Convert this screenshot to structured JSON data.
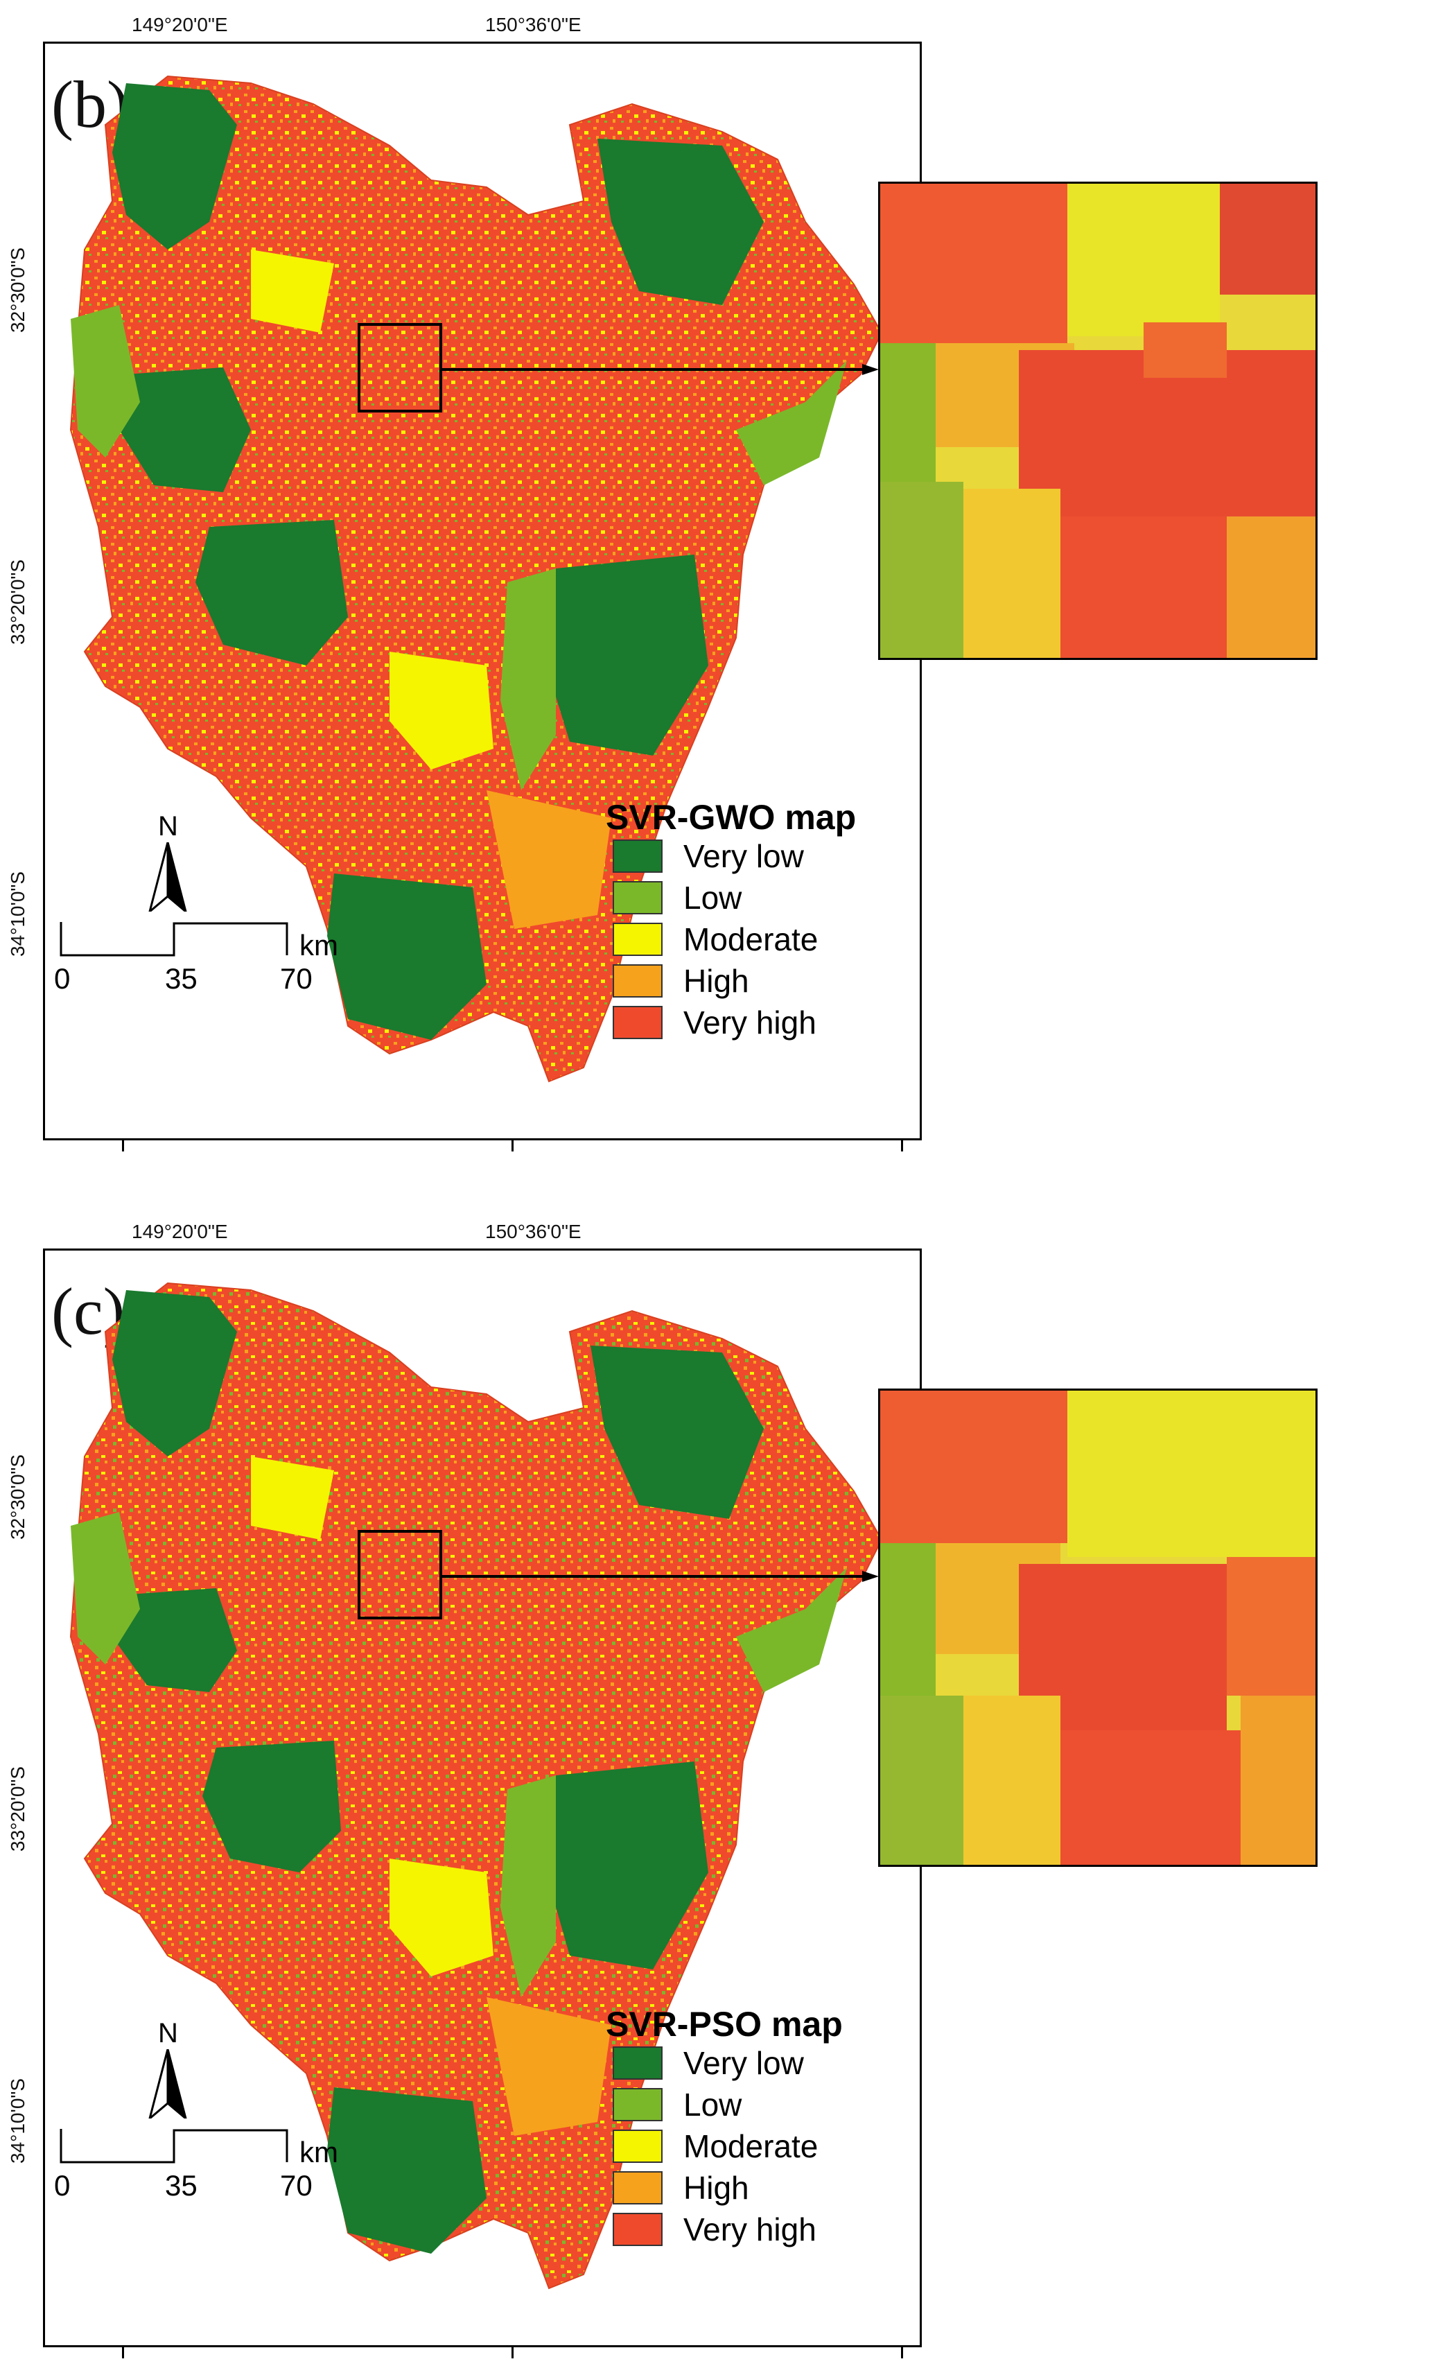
{
  "longitude_labels": [
    "149°20'0\"E",
    "150°36'0\"E"
  ],
  "latitude_labels": [
    "32°30'0\"S",
    "33°20'0\"S",
    "34°10'0\"S"
  ],
  "panels": [
    {
      "id": "b",
      "label": "(b)",
      "legend_title": "SVR-GWO map",
      "legend": [
        {
          "label": "Very low",
          "color": "#1a7a2e"
        },
        {
          "label": "Low",
          "color": "#7ab82a"
        },
        {
          "label": "Moderate",
          "color": "#f5f500"
        },
        {
          "label": "High",
          "color": "#f7a21c"
        },
        {
          "label": "Very high",
          "color": "#f04a2c"
        }
      ],
      "north_label": "N",
      "scale": {
        "ticks": [
          "0",
          "35",
          "70"
        ],
        "unit": "km"
      }
    },
    {
      "id": "c",
      "label": "(c)",
      "legend_title": "SVR-PSO map",
      "legend": [
        {
          "label": "Very low",
          "color": "#1a7a2e"
        },
        {
          "label": "Low",
          "color": "#7ab82a"
        },
        {
          "label": "Moderate",
          "color": "#f5f500"
        },
        {
          "label": "High",
          "color": "#f7a21c"
        },
        {
          "label": "Very high",
          "color": "#f04a2c"
        }
      ],
      "north_label": "N",
      "scale": {
        "ticks": [
          "0",
          "35",
          "70"
        ],
        "unit": "km"
      }
    }
  ]
}
